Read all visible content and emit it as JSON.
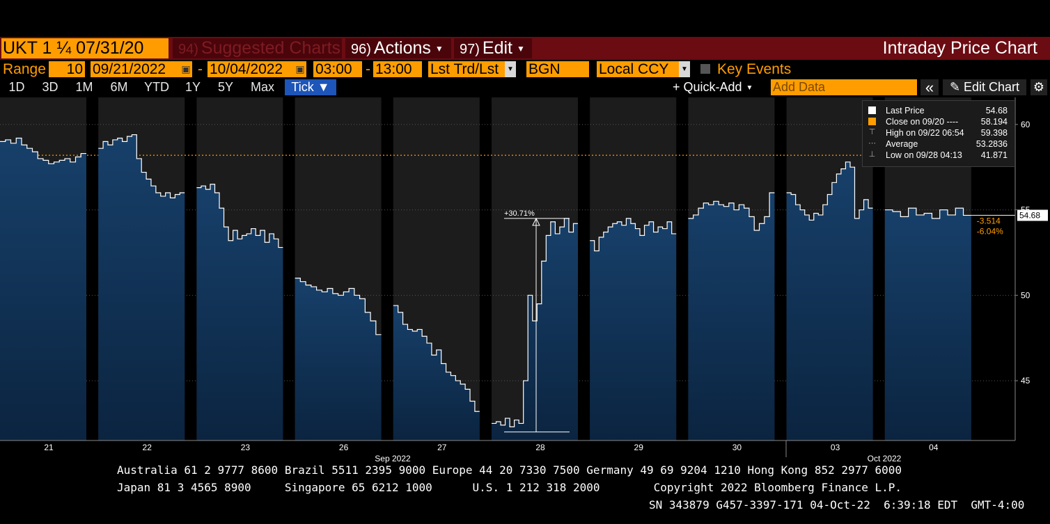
{
  "header": {
    "ticker": "UKT 1 ¼ 07/31/20",
    "suggested_num": "94)",
    "suggested_label": "Suggested Charts",
    "actions_num": "96)",
    "actions_label": "Actions",
    "edit_num": "97)",
    "edit_label": "Edit",
    "app_title": "Intraday Price Chart"
  },
  "controls": {
    "range_label": "Range",
    "range_value": "10",
    "start_date": "09/21/2022",
    "end_date": "10/04/2022",
    "dash": "-",
    "start_time": "03:00",
    "end_time": "13:00",
    "market_select": "Lst Trd/Lst",
    "source": "BGN",
    "currency": "Local CCY",
    "key_events_label": "Key Events"
  },
  "toolbar": {
    "tabs": [
      "1D",
      "3D",
      "1M",
      "6M",
      "YTD",
      "1Y",
      "5Y",
      "Max",
      "Tick ▼"
    ],
    "active_tab": "Tick ▼",
    "quick_add": "+ Quick-Add",
    "add_data_placeholder": "Add Data",
    "collapse": "«",
    "edit_chart": "✎ Edit Chart",
    "settings": "⚙"
  },
  "legend": {
    "items": [
      {
        "name": "Last Price",
        "value": "54.68",
        "symbol": "white-square"
      },
      {
        "name": "Close on 09/20 ----",
        "value": "58.194",
        "symbol": "orange-square"
      },
      {
        "name": "High on 09/22 06:54",
        "value": "59.398",
        "symbol": "high-marker"
      },
      {
        "name": "Average",
        "value": "53.2836",
        "symbol": "average-marker"
      },
      {
        "name": "Low on 09/28 04:13",
        "value": "41.871",
        "symbol": "low-marker"
      }
    ]
  },
  "chart_data": {
    "type": "area",
    "x_ticks": [
      "21",
      "22",
      "23",
      "26",
      "27",
      "28",
      "29",
      "30",
      "03",
      "04"
    ],
    "month_labels": [
      "Sep 2022",
      "Oct 2022"
    ],
    "y_ticks": [
      45,
      50,
      55,
      60
    ],
    "ylim": [
      41.5,
      61.5
    ],
    "grid": true,
    "legend_position": "top-right",
    "last_price_label": "54.68",
    "reference_close": 58.194,
    "change_abs": "-3.514",
    "change_pct": "-6.04%",
    "annotation": "+30.71%",
    "colors": {
      "area_day": "#14324f",
      "area_night": "#04162e",
      "line": "#ffffff",
      "close_line": "#ff9d00",
      "up_change": "#ff9d00"
    },
    "series": [
      {
        "day": "21",
        "values": [
          59.0,
          59.1,
          58.9,
          59.2,
          58.8,
          58.6,
          58.4,
          58.0,
          57.9,
          57.7,
          57.8,
          57.9,
          58.0,
          57.8,
          58.1,
          58.3
        ]
      },
      {
        "day": "22",
        "values": [
          58.6,
          59.0,
          58.8,
          59.1,
          59.2,
          59.0,
          59.3,
          59.4,
          58.0,
          57.2,
          56.8,
          56.4,
          56.0,
          55.8,
          56.0,
          55.7,
          55.9,
          56.0
        ]
      },
      {
        "day": "23",
        "values": [
          56.3,
          56.4,
          56.2,
          56.5,
          56.0,
          55.1,
          54.0,
          53.2,
          53.8,
          53.3,
          53.5,
          53.6,
          53.9,
          53.5,
          53.8,
          53.1,
          53.6,
          53.3,
          52.8
        ]
      },
      {
        "day": "26",
        "values": [
          51.0,
          50.8,
          50.6,
          50.5,
          50.3,
          50.2,
          50.4,
          50.1,
          50.0,
          50.2,
          50.4,
          50.0,
          49.8,
          49.0,
          48.5,
          47.7
        ]
      },
      {
        "day": "27",
        "values": [
          49.4,
          49.0,
          48.3,
          48.0,
          47.9,
          48.0,
          47.6,
          47.2,
          46.5,
          46.8,
          46.0,
          45.5,
          45.3,
          45.0,
          44.8,
          44.5,
          43.8,
          43.2
        ]
      },
      {
        "day": "28",
        "values": [
          42.5,
          42.6,
          42.4,
          42.8,
          42.3,
          42.7,
          42.5,
          45.0,
          50.0,
          48.5,
          49.5,
          52.0,
          53.5,
          54.3,
          53.6,
          54.0,
          54.5,
          53.7,
          54.2
        ]
      },
      {
        "day": "29",
        "values": [
          53.2,
          52.6,
          53.4,
          53.7,
          54.0,
          54.2,
          54.3,
          54.1,
          54.5,
          54.2,
          53.9,
          53.5,
          54.1,
          54.3,
          53.7,
          54.0,
          53.9,
          54.3,
          53.6
        ]
      },
      {
        "day": "30",
        "values": [
          54.5,
          54.7,
          55.1,
          55.4,
          55.3,
          55.5,
          55.3,
          55.2,
          55.4,
          55.0,
          55.3,
          55.1,
          54.6,
          53.8,
          54.2,
          54.6,
          56.0
        ]
      },
      {
        "day": "03",
        "values": [
          56.0,
          55.9,
          55.3,
          55.0,
          54.7,
          54.4,
          54.8,
          54.7,
          55.3,
          55.9,
          56.6,
          57.1,
          57.4,
          57.8,
          57.5,
          54.5,
          55.0,
          55.6,
          55.1
        ]
      },
      {
        "day": "04",
        "values": [
          55.0,
          54.9,
          54.6,
          55.1,
          54.7,
          54.8,
          54.5,
          55.0,
          54.7,
          55.1,
          54.68
        ]
      }
    ]
  },
  "footer": {
    "line1": "Australia 61 2 9777 8600 Brazil 5511 2395 9000 Europe 44 20 7330 7500 Germany 49 69 9204 1210 Hong Kong 852 2977 6000",
    "line2": "Japan 81 3 4565 8900     Singapore 65 6212 1000      U.S. 1 212 318 2000        Copyright 2022 Bloomberg Finance L.P.",
    "line3": "SN 343879 G457-3397-171 04-Oct-22  6:39:18 EDT  GMT-4:00"
  }
}
